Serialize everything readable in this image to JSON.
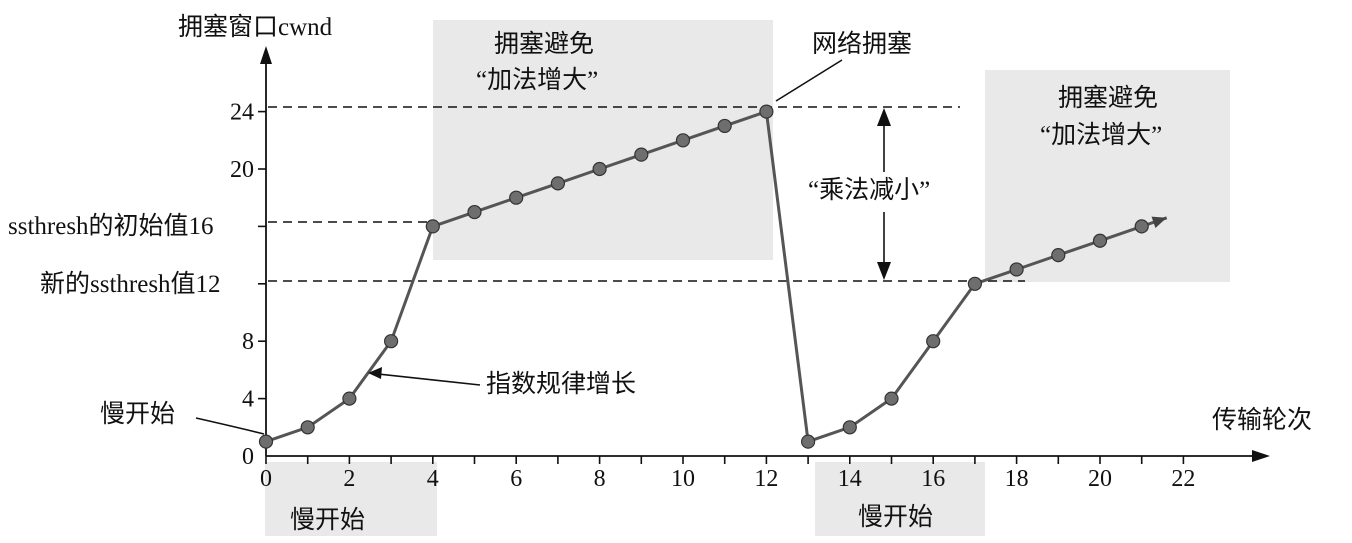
{
  "chart_data": {
    "type": "line",
    "ylabel": "拥塞窗口cwnd",
    "xlabel": "传输轮次",
    "x_ticks": [
      "0",
      "2",
      "4",
      "6",
      "8",
      "10",
      "12",
      "14",
      "16",
      "18",
      "20",
      "22"
    ],
    "y_ticks": [
      "0",
      "4",
      "8",
      "20",
      "24"
    ],
    "y_special_labels": [
      "ssthresh的初始值16",
      "新的ssthresh值12"
    ],
    "xlim": [
      0,
      23.5
    ],
    "ylim": [
      0,
      28
    ],
    "series": [
      {
        "x": [
          0,
          1,
          2,
          3,
          4,
          5,
          6,
          7,
          8,
          9,
          10,
          11,
          12,
          13,
          14,
          15,
          16,
          17,
          18,
          19,
          20,
          21,
          21.6
        ],
        "y": [
          1,
          2,
          4,
          8,
          16,
          17,
          18,
          19,
          20,
          21,
          22,
          23,
          24,
          1,
          2,
          4,
          8,
          12,
          13,
          14,
          15,
          16,
          16.6
        ],
        "markers": [
          0,
          1,
          2,
          3,
          4,
          5,
          6,
          7,
          8,
          9,
          10,
          11,
          12,
          13,
          14,
          15,
          16,
          17,
          18,
          19,
          20,
          21
        ]
      }
    ],
    "annotations": {
      "slow_start_top": "慢开始",
      "slow_start_bottom_1": "慢开始",
      "slow_start_bottom_2": "慢开始",
      "exponential": "指数规律增长",
      "congestion": "网络拥塞",
      "ca1_line1": "拥塞避免",
      "ca1_line2": "“加法增大”",
      "ca2_line1": "拥塞避免",
      "ca2_line2": "“加法增大”",
      "mult_decrease": "“乘法减小”"
    }
  }
}
